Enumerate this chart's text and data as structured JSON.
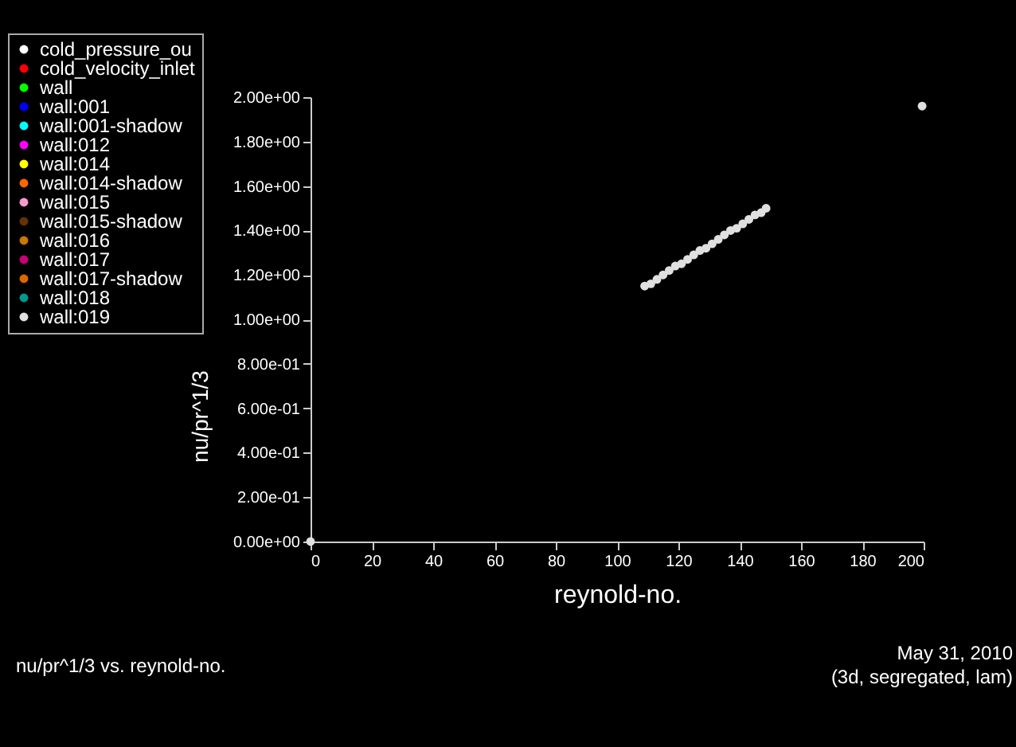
{
  "chart_data": {
    "type": "scatter",
    "xlabel": "reynold-no.",
    "ylabel": "nu/pr^1/3",
    "xlim": [
      0,
      200
    ],
    "xticks": [
      0,
      20,
      40,
      60,
      80,
      100,
      120,
      140,
      160,
      180,
      200
    ],
    "ylim": [
      0,
      2
    ],
    "yticks": [
      {
        "value": 0,
        "label": "0.00e+00"
      },
      {
        "value": 0.2,
        "label": "2.00e-01"
      },
      {
        "value": 0.4,
        "label": "4.00e-01"
      },
      {
        "value": 0.6,
        "label": "6.00e-01"
      },
      {
        "value": 0.8,
        "label": "8.00e-01"
      },
      {
        "value": 1,
        "label": "1.00e+00"
      },
      {
        "value": 1.2,
        "label": "1.20e+00"
      },
      {
        "value": 1.4,
        "label": "1.40e+00"
      },
      {
        "value": 1.6,
        "label": "1.60e+00"
      },
      {
        "value": 1.8,
        "label": "1.80e+00"
      },
      {
        "value": 2,
        "label": "2.00e+00"
      }
    ],
    "legend": "top left",
    "marker": "circle",
    "grid": false,
    "series": [
      {
        "name": "cold_pressure_ou",
        "color": "#ffffff"
      },
      {
        "name": "cold_velocity_inlet",
        "color": "#ff0000"
      },
      {
        "name": "wall",
        "color": "#00ff00"
      },
      {
        "name": "wall:001",
        "color": "#0000ff"
      },
      {
        "name": "wall:001-shadow",
        "color": "#00ffff"
      },
      {
        "name": "wall:012",
        "color": "#ff00ff"
      },
      {
        "name": "wall:014",
        "color": "#ffff00"
      },
      {
        "name": "wall:014-shadow",
        "color": "#ff6600"
      },
      {
        "name": "wall:015",
        "color": "#ff99cc"
      },
      {
        "name": "wall:015-shadow",
        "color": "#663300"
      },
      {
        "name": "wall:016",
        "color": "#cc7700"
      },
      {
        "name": "wall:017",
        "color": "#cc0077"
      },
      {
        "name": "wall:017-shadow",
        "color": "#dd6600"
      },
      {
        "name": "wall:018",
        "color": "#00998f"
      },
      {
        "name": "wall:019",
        "color": "#e0e0e0",
        "x": [
          0,
          109,
          111,
          113,
          115,
          117,
          119,
          121,
          123,
          125,
          127,
          129,
          131,
          133,
          135,
          137,
          139,
          141,
          143,
          145,
          147,
          148.6,
          199.5
        ],
        "values": [
          0,
          1.15,
          1.16,
          1.18,
          1.2,
          1.22,
          1.24,
          1.25,
          1.27,
          1.29,
          1.31,
          1.32,
          1.34,
          1.36,
          1.38,
          1.4,
          1.41,
          1.43,
          1.45,
          1.47,
          1.48,
          1.5,
          1.96
        ]
      }
    ],
    "annotations": [
      "nu/pr^1/3 vs. reynold-no.",
      "May 31, 2010",
      "(3d, segregated, lam)"
    ]
  }
}
